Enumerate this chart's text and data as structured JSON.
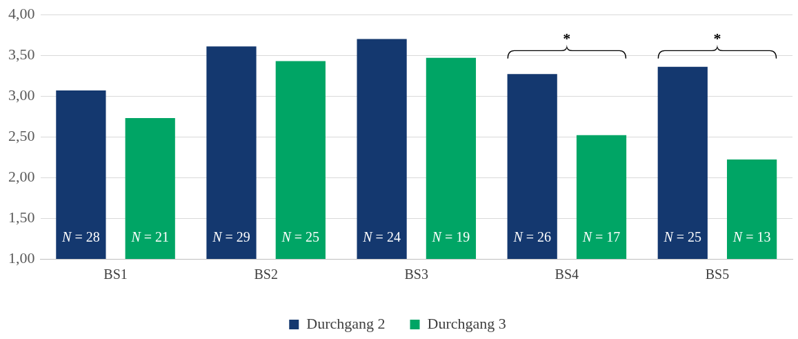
{
  "chart_data": {
    "type": "bar",
    "categories": [
      "BS1",
      "BS2",
      "BS3",
      "BS4",
      "BS5"
    ],
    "series": [
      {
        "name": "Durchgang 2",
        "color": "#14386f",
        "values": [
          3.07,
          3.61,
          3.7,
          3.27,
          3.36
        ]
      },
      {
        "name": "Durchgang 3",
        "color": "#00a565",
        "values": [
          2.73,
          3.43,
          3.47,
          2.52,
          2.22
        ]
      }
    ],
    "ylim": [
      1,
      4
    ],
    "yticks": [
      {
        "value": 1,
        "label": "1,00"
      },
      {
        "value": 1.5,
        "label": "1,50"
      },
      {
        "value": 2,
        "label": "2,00"
      },
      {
        "value": 2.5,
        "label": "2,50"
      },
      {
        "value": 3,
        "label": "3,00"
      },
      {
        "value": 3.5,
        "label": "3,50"
      },
      {
        "value": 4,
        "label": "4,00"
      }
    ],
    "annotations": [
      "*",
      "*",
      "N = 28",
      "N = 21",
      "N = 29",
      "N = 25",
      "N = 24",
      "N = 19",
      "N = 26",
      "N = 17",
      "N = 25",
      "N = 13"
    ],
    "grid": "y",
    "legend": "bottom"
  }
}
